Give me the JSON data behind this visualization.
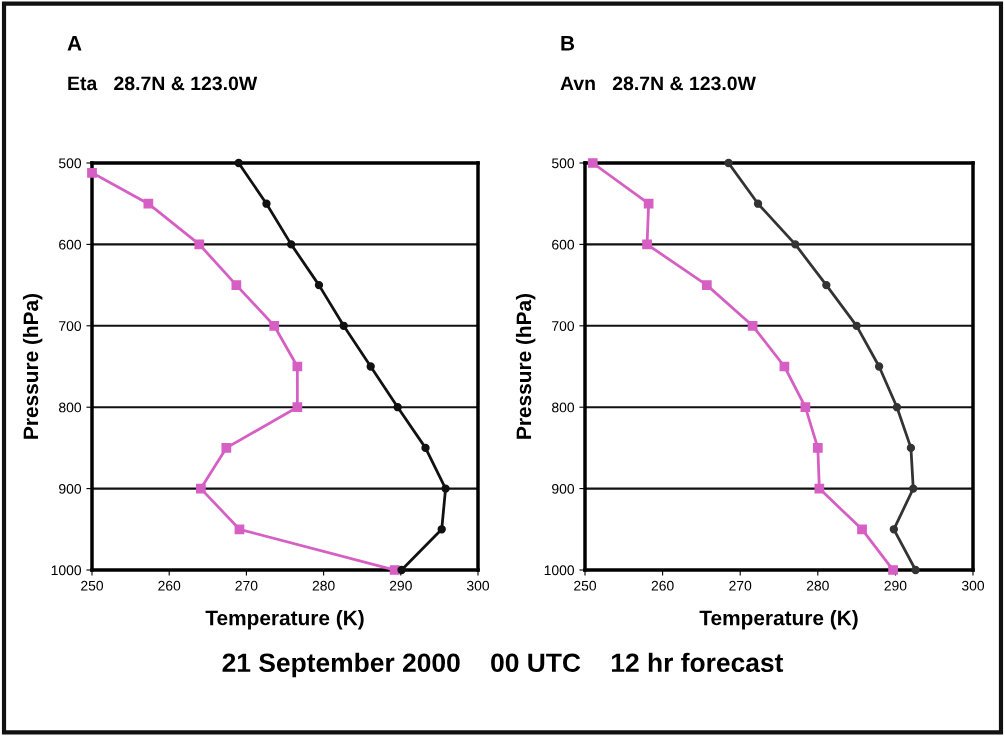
{
  "chart_data": [
    {
      "type": "line",
      "title": "A",
      "subtitle": "Eta   28.7N & 123.0W",
      "xlabel": "Temperature (K)",
      "ylabel": "Pressure (hPa)",
      "xlim": [
        250,
        300
      ],
      "xticks": [
        250,
        260,
        270,
        280,
        290,
        300
      ],
      "ylim": [
        1000,
        500
      ],
      "yticks": [
        500,
        600,
        700,
        800,
        900,
        1000
      ],
      "grid": "y",
      "series": [
        {
          "color": "#d65fc4",
          "marker": "square",
          "x": [
            250,
            257.3,
            263.9,
            268.7,
            273.6,
            276.6,
            276.6,
            267.4,
            264.1,
            269.1,
            289.2
          ],
          "values": [
            512,
            550,
            600,
            650,
            700,
            750,
            800,
            850,
            900,
            950,
            1000
          ]
        },
        {
          "color": "#111111",
          "marker": "circle",
          "x": [
            269.0,
            272.6,
            275.8,
            279.4,
            282.6,
            286.1,
            289.6,
            293.2,
            295.8,
            295.3,
            290.1
          ],
          "values": [
            500,
            550,
            600,
            650,
            700,
            750,
            800,
            850,
            900,
            950,
            1000
          ]
        }
      ],
      "annotations": [
        "21 September 2000    00 UTC    12 hr forecast"
      ]
    },
    {
      "type": "line",
      "title": "B",
      "subtitle": "Avn   28.7N & 123.0W",
      "xlabel": "Temperature (K)",
      "ylabel": "Pressure (hPa)",
      "xlim": [
        250,
        300
      ],
      "xticks": [
        250,
        260,
        270,
        280,
        290,
        300
      ],
      "ylim": [
        1000,
        500
      ],
      "yticks": [
        500,
        600,
        700,
        800,
        900,
        1000
      ],
      "grid": "y",
      "series": [
        {
          "color": "#d65fc4",
          "marker": "square",
          "x": [
            251.0,
            258.2,
            258.0,
            265.7,
            271.6,
            275.7,
            278.4,
            280.0,
            280.2,
            285.7,
            289.7
          ],
          "values": [
            500,
            550,
            600,
            650,
            700,
            750,
            800,
            850,
            900,
            950,
            1000
          ]
        },
        {
          "color": "#333333",
          "marker": "circle",
          "x": [
            268.5,
            272.3,
            277.1,
            281.1,
            285.0,
            287.9,
            290.2,
            292.0,
            292.3,
            289.8,
            292.6
          ],
          "values": [
            500,
            550,
            600,
            650,
            700,
            750,
            800,
            850,
            900,
            950,
            1000
          ]
        }
      ]
    }
  ]
}
